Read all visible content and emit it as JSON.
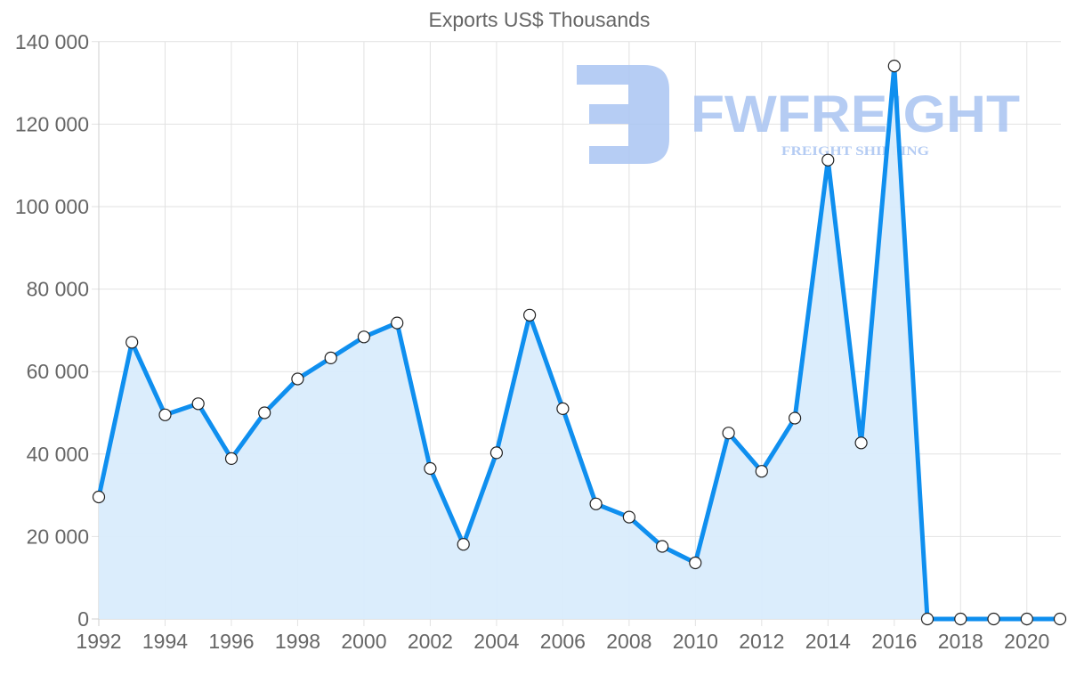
{
  "chart_data": {
    "type": "area",
    "title": "Exports US$ Thousands",
    "xlabel": "",
    "ylabel": "",
    "x": [
      1992,
      1993,
      1994,
      1995,
      1996,
      1997,
      1998,
      1999,
      2000,
      2001,
      2002,
      2003,
      2004,
      2005,
      2006,
      2007,
      2008,
      2009,
      2010,
      2011,
      2012,
      2013,
      2014,
      2015,
      2016,
      2017,
      2018,
      2019,
      2020,
      2021
    ],
    "series": [
      {
        "name": "Exports US$ Thousands",
        "values": [
          29600,
          67100,
          49500,
          52200,
          38900,
          50000,
          58200,
          63300,
          68400,
          71800,
          36500,
          18100,
          40300,
          73700,
          51000,
          27900,
          24700,
          17600,
          13600,
          45100,
          35800,
          48700,
          111300,
          42700,
          134100,
          0,
          0,
          0,
          0,
          0
        ]
      }
    ],
    "xtick_labels": [
      "1992",
      "1994",
      "1996",
      "1998",
      "2000",
      "2002",
      "2004",
      "2006",
      "2008",
      "2010",
      "2012",
      "2014",
      "2016",
      "2018",
      "2020"
    ],
    "ytick_labels": [
      "0",
      "20 000",
      "40 000",
      "60 000",
      "80 000",
      "100 000",
      "120 000",
      "140 000"
    ],
    "ytick_values": [
      0,
      20000,
      40000,
      60000,
      80000,
      100000,
      120000,
      140000
    ],
    "ylim": [
      0,
      140000
    ],
    "xlim": [
      1992,
      2021
    ],
    "grid": true,
    "legend": null,
    "colors": {
      "line": "#0f8fef",
      "fill": "#d9ecfc",
      "point_fill": "#ffffff",
      "point_stroke": "#222222"
    }
  },
  "watermark": {
    "brand": "FWFREIGHT",
    "tagline": "FREIGHT SHIPPING",
    "color": "#a9c4f2"
  }
}
